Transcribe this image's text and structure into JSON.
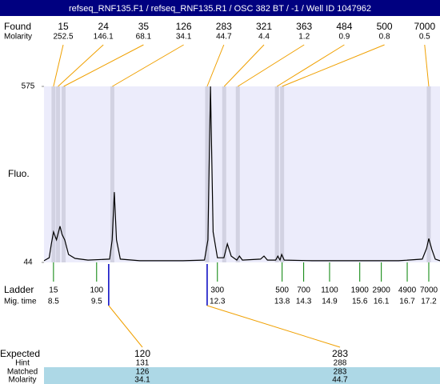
{
  "title": "refseq_RNF135.F1 / refseq_RNF135.R1 / OSC 382 BT / -1 / Well ID 1047962",
  "found": {
    "label": "Found",
    "molarity_label": "Molarity",
    "sizes": [
      15,
      24,
      35,
      126,
      283,
      321,
      363,
      484,
      500,
      7000
    ],
    "molarity": [
      252.5,
      146.1,
      68.1,
      34.1,
      44.7,
      4.4,
      1.2,
      0.9,
      0.8,
      0.5
    ]
  },
  "chart_data": {
    "type": "line",
    "y_label": "Fluo.",
    "color": "#000000",
    "x": [
      8.28,
      8.4,
      8.45,
      8.5,
      8.57,
      8.65,
      8.7,
      8.76,
      8.85,
      9.0,
      9.3,
      9.8,
      9.86,
      9.91,
      9.96,
      10.05,
      10.5,
      11.5,
      12.0,
      12.08,
      12.14,
      12.2,
      12.3,
      12.45,
      12.53,
      12.62,
      12.75,
      12.81,
      12.88,
      13.3,
      13.38,
      13.46,
      13.65,
      13.7,
      13.75,
      13.79,
      13.85,
      14.5,
      15.5,
      16.5,
      17.05,
      17.15,
      17.2,
      17.27,
      17.35,
      17.46
    ],
    "values": [
      49,
      58,
      100,
      136,
      112,
      153,
      128,
      112,
      68,
      56,
      51,
      54,
      112,
      256,
      112,
      54,
      49,
      49,
      51,
      112,
      575,
      136,
      58,
      58,
      100,
      63,
      51,
      63,
      51,
      54,
      63,
      51,
      51,
      63,
      51,
      68,
      51,
      49,
      49,
      49,
      54,
      87,
      116,
      83,
      54,
      49
    ],
    "xlim": [
      8.28,
      17.46
    ],
    "ylim": [
      44,
      575
    ],
    "yticks": [
      44,
      575
    ]
  },
  "ladder": {
    "label": "Ladder",
    "time_label": "Mig. time",
    "sizes": [
      15,
      100,
      300,
      500,
      700,
      1100,
      1900,
      2900,
      4900,
      7000
    ],
    "mig_times": [
      8.5,
      9.5,
      12.3,
      13.8,
      14.3,
      14.9,
      15.6,
      16.1,
      16.7,
      17.2
    ]
  },
  "expected": {
    "label": "Expected",
    "values": [
      120,
      283
    ],
    "hint_label": "Hint",
    "hint": [
      131,
      288
    ],
    "matched_label": "Matched",
    "matched": [
      126,
      283
    ],
    "molarity_label": "Molarity",
    "molarity": [
      34.1,
      44.7
    ]
  }
}
